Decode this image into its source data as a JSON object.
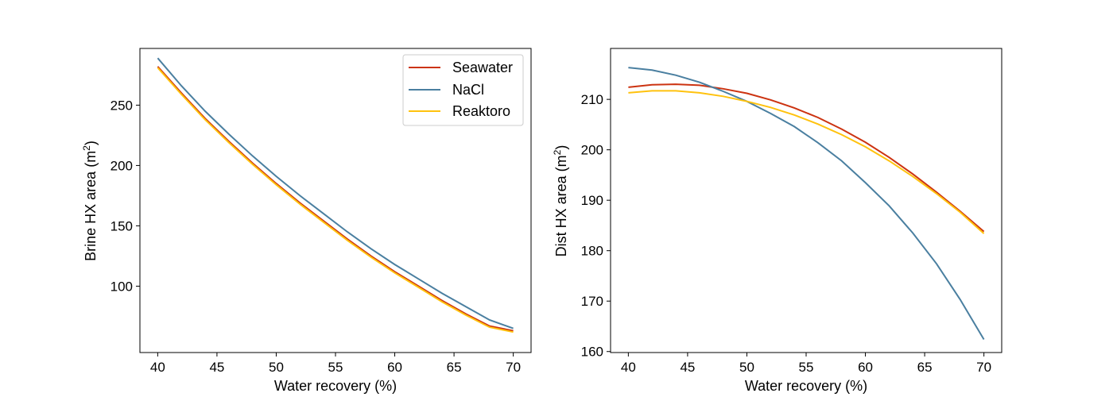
{
  "chart_data": [
    {
      "type": "line",
      "xlabel": "Water recovery (%)",
      "ylabel_main": "Brine HX area (m",
      "ylabel_sup": "2",
      "ylabel_end": ")",
      "xlim": [
        38.5,
        71.5
      ],
      "ylim": [
        45,
        297
      ],
      "xticks": [
        40,
        45,
        50,
        55,
        60,
        65,
        70
      ],
      "yticks": [
        100,
        150,
        200,
        250
      ],
      "legend_position": "upper-right",
      "x": [
        40,
        42,
        44,
        46,
        48,
        50,
        52,
        54,
        56,
        58,
        60,
        62,
        64,
        66,
        68,
        70
      ],
      "series": [
        {
          "name": "Seawater",
          "color": "#cc3311",
          "values": [
            282,
            260,
            239,
            220,
            202,
            185,
            169,
            154,
            139,
            125,
            112,
            100,
            88,
            77,
            67,
            63
          ]
        },
        {
          "name": "NaCl",
          "color": "#4a7fa0",
          "values": [
            289,
            266,
            245,
            226,
            208,
            191,
            175,
            160,
            145,
            131,
            118,
            106,
            94,
            83,
            72,
            65
          ]
        },
        {
          "name": "Reaktoro",
          "color": "#ffc20e",
          "values": [
            281,
            259,
            238,
            219,
            201,
            184,
            168,
            153,
            138,
            124,
            111,
            99,
            87,
            76,
            66,
            62
          ]
        }
      ]
    },
    {
      "type": "line",
      "xlabel": "Water recovery (%)",
      "ylabel_main": "Dist HX area (m",
      "ylabel_sup": "2",
      "ylabel_end": ")",
      "xlim": [
        38.5,
        71.5
      ],
      "ylim": [
        159.8,
        220.1
      ],
      "xticks": [
        40,
        45,
        50,
        55,
        60,
        65,
        70
      ],
      "yticks": [
        160,
        170,
        180,
        190,
        200,
        210
      ],
      "x": [
        40,
        42,
        44,
        46,
        48,
        50,
        52,
        54,
        56,
        58,
        60,
        62,
        64,
        66,
        68,
        70
      ],
      "series": [
        {
          "name": "Seawater",
          "color": "#cc3311",
          "values": [
            212.4,
            212.9,
            213.0,
            212.8,
            212.1,
            211.2,
            209.9,
            208.3,
            206.4,
            204.1,
            201.5,
            198.5,
            195.2,
            191.6,
            187.8,
            183.8
          ]
        },
        {
          "name": "NaCl",
          "color": "#4a7fa0",
          "values": [
            216.3,
            215.8,
            214.8,
            213.4,
            211.6,
            209.6,
            207.2,
            204.6,
            201.4,
            197.8,
            193.5,
            188.9,
            183.5,
            177.4,
            170.3,
            162.4
          ]
        },
        {
          "name": "Reaktoro",
          "color": "#ffc20e",
          "values": [
            211.3,
            211.7,
            211.7,
            211.3,
            210.6,
            209.6,
            208.4,
            206.9,
            205.1,
            203.0,
            200.6,
            197.8,
            194.7,
            191.3,
            187.6,
            183.4
          ]
        }
      ]
    }
  ]
}
